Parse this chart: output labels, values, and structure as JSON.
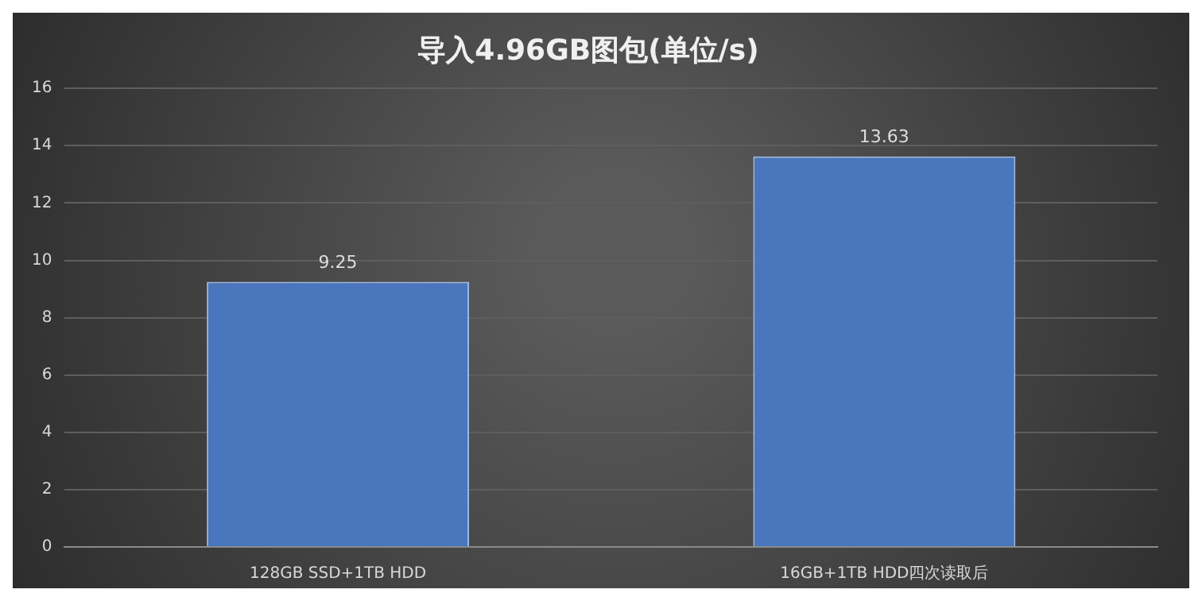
{
  "chart_data": {
    "type": "bar",
    "title": "导入4.96GB图包(单位/s)",
    "categories": [
      "128GB SSD+1TB HDD",
      "16GB+1TB HDD四次读取后"
    ],
    "values": [
      9.25,
      13.63
    ],
    "color": "#4a76bd",
    "ylim": [
      0,
      16
    ],
    "yticks": [
      0,
      2,
      4,
      6,
      8,
      10,
      12,
      14,
      16
    ],
    "grid": "y",
    "data_labels": true
  }
}
